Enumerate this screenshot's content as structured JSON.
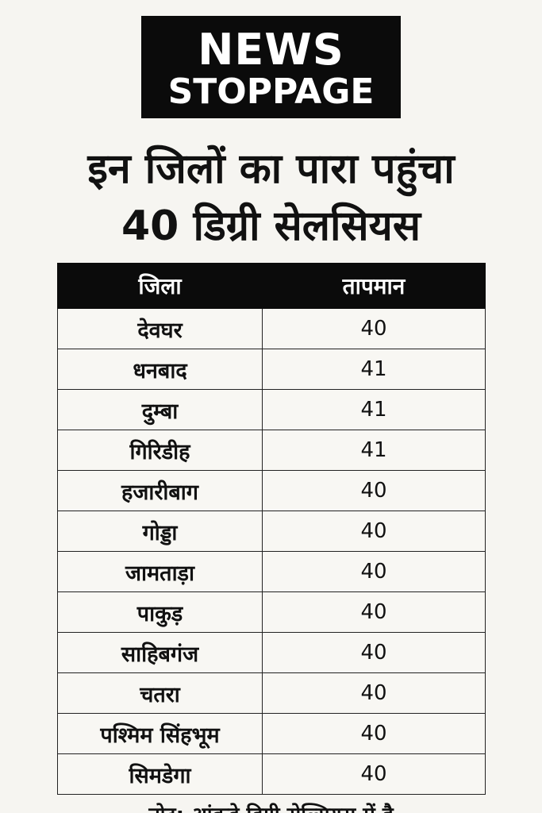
{
  "logo": {
    "line1": "NEWS",
    "line2": "STOPPAGE"
  },
  "headline": {
    "line1": "इन जिलों का पारा पहुंचा",
    "line2": "40 डिग्री सेलसियस"
  },
  "table": {
    "headers": [
      "जिला",
      "तापमान"
    ],
    "rows": [
      {
        "district": "देवघर",
        "temperature": "40"
      },
      {
        "district": "धनबाद",
        "temperature": "41"
      },
      {
        "district": "दुम्बा",
        "temperature": "41"
      },
      {
        "district": "गिरिडीह",
        "temperature": "41"
      },
      {
        "district": "हजारीबाग",
        "temperature": "40"
      },
      {
        "district": "गोड्डा",
        "temperature": "40"
      },
      {
        "district": "जामताड़ा",
        "temperature": "40"
      },
      {
        "district": "पाकुड़",
        "temperature": "40"
      },
      {
        "district": "साहिबगंज",
        "temperature": "40"
      },
      {
        "district": "चतरा",
        "temperature": "40"
      },
      {
        "district": "पश्मिम सिंहभूम",
        "temperature": "40"
      },
      {
        "district": "सिमडेगा",
        "temperature": "40"
      }
    ]
  },
  "footer": {
    "note": "नोट: आंकड़े डिग्री सेल्सियस में है"
  }
}
